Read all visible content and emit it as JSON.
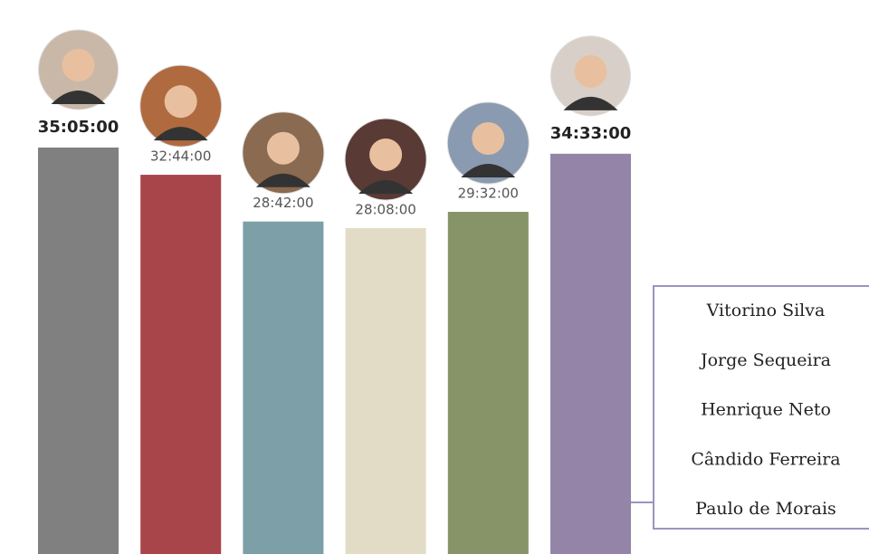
{
  "chart_data": {
    "type": "bar",
    "categories": [
      null,
      null,
      null,
      null,
      null,
      null
    ],
    "values": [
      2105,
      1964,
      1722,
      1688,
      1772,
      2073
    ],
    "value_labels": [
      "35:05:00",
      "32:44:00",
      "28:42:00",
      "28:08:00",
      "29:32:00",
      "34:33:00"
    ],
    "colors": [
      "#808080",
      "#a8454a",
      "#7d9fa7",
      "#e2dcc6",
      "#869468",
      "#9485a8"
    ],
    "callout": [
      "Vitorino Silva",
      "Jorge Sequeira",
      "Henrique Neto",
      "Cândido Ferreira",
      "Paulo de Morais"
    ]
  }
}
